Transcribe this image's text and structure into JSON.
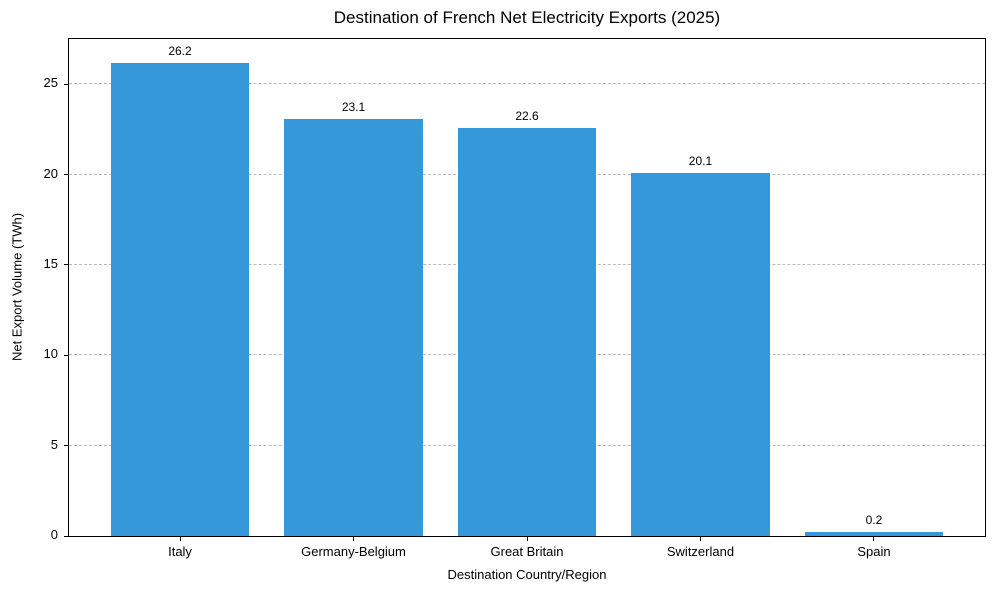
{
  "chart_data": {
    "type": "bar",
    "title": "Destination of French Net Electricity Exports (2025)",
    "xlabel": "Destination Country/Region",
    "ylabel": "Net Export Volume (TWh)",
    "categories": [
      "Italy",
      "Germany-Belgium",
      "Great Britain",
      "Switzerland",
      "Spain"
    ],
    "values": [
      26.2,
      23.1,
      22.6,
      20.1,
      0.2
    ],
    "value_labels": [
      "26.2",
      "23.1",
      "22.6",
      "20.1",
      "0.2"
    ],
    "ytick_values": [
      0,
      5,
      10,
      15,
      20,
      25
    ],
    "ytick_labels": [
      "0",
      "5",
      "10",
      "15",
      "20",
      "25"
    ],
    "ylim": [
      0,
      27.5
    ],
    "grid": "horizontal-dashed",
    "legend": "none",
    "colors": {
      "bar": "#3498db",
      "grid": "#bbbbbb",
      "axis": "#000000",
      "text": "#000000",
      "background": "#ffffff"
    }
  }
}
